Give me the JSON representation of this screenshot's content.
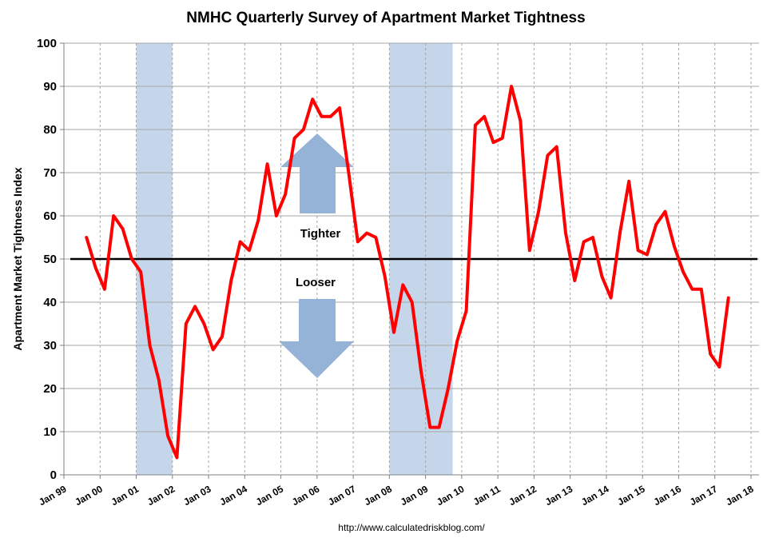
{
  "chart_data": {
    "type": "line",
    "title": "NMHC Quarterly Survey of Apartment Market Tightness",
    "ylabel": "Apartment Market Tightness Index",
    "xlabel": "",
    "ylim": [
      0,
      100
    ],
    "yticks": [
      0,
      10,
      20,
      30,
      40,
      50,
      60,
      70,
      80,
      90,
      100
    ],
    "xlim": [
      1999.0,
      2018.0
    ],
    "xtick_labels": [
      "Jan 99",
      "Jan 00",
      "Jan 01",
      "Jan 02",
      "Jan 03",
      "Jan 04",
      "Jan 05",
      "Jan 06",
      "Jan 07",
      "Jan 08",
      "Jan 09",
      "Jan 10",
      "Jan 11",
      "Jan 12",
      "Jan 13",
      "Jan 14",
      "Jan 15",
      "Jan 16",
      "Jan 17",
      "Jan 18"
    ],
    "grid": "vertical dashed",
    "reference_line": 50,
    "recessions": [
      [
        2001.0,
        2002.0
      ],
      [
        2008.0,
        2009.75
      ]
    ],
    "annotations": {
      "tighter": "Tighter",
      "looser": "Looser"
    },
    "source": "http://www.calculatedriskblog.com/",
    "colors": {
      "series": "#ff0000",
      "recession": "#c5d6eb",
      "arrow": "#95b3d7",
      "reference": "#000000"
    },
    "series": [
      {
        "x": [
          1999.625,
          1999.875,
          2000.125,
          2000.375,
          2000.625,
          2000.875,
          2001.125,
          2001.375,
          2001.625,
          2001.875,
          2002.125,
          2002.375,
          2002.625,
          2002.875,
          2003.125,
          2003.375,
          2003.625,
          2003.875,
          2004.125,
          2004.375,
          2004.625,
          2004.875,
          2005.125,
          2005.375,
          2005.625,
          2005.875,
          2006.125,
          2006.375,
          2006.625,
          2006.875,
          2007.125,
          2007.375,
          2007.625,
          2007.875,
          2008.125,
          2008.375,
          2008.625,
          2008.875,
          2009.125,
          2009.375,
          2009.625,
          2009.875,
          2010.125,
          2010.375,
          2010.625,
          2010.875,
          2011.125,
          2011.375,
          2011.625,
          2011.875,
          2012.125,
          2012.375,
          2012.625,
          2012.875,
          2013.125,
          2013.375,
          2013.625,
          2013.875,
          2014.125,
          2014.375,
          2014.625,
          2014.875,
          2015.125,
          2015.375,
          2015.625,
          2015.875,
          2016.125,
          2016.375,
          2016.625,
          2016.875,
          2017.125,
          2017.375
        ],
        "values": [
          55,
          48,
          43,
          60,
          57,
          50,
          47,
          30,
          22,
          9,
          4,
          35,
          39,
          35,
          29,
          32,
          45,
          54,
          52,
          59,
          72,
          60,
          65,
          78,
          80,
          87,
          83,
          83,
          85,
          70,
          54,
          56,
          55,
          46,
          33,
          44,
          40,
          24,
          11,
          11,
          20,
          31,
          38,
          81,
          83,
          77,
          78,
          90,
          82,
          52,
          61,
          74,
          76,
          56,
          45,
          54,
          55,
          46,
          41,
          56,
          68,
          52,
          51,
          58,
          61,
          53,
          47,
          43,
          43,
          28,
          25,
          41
        ]
      }
    ]
  }
}
